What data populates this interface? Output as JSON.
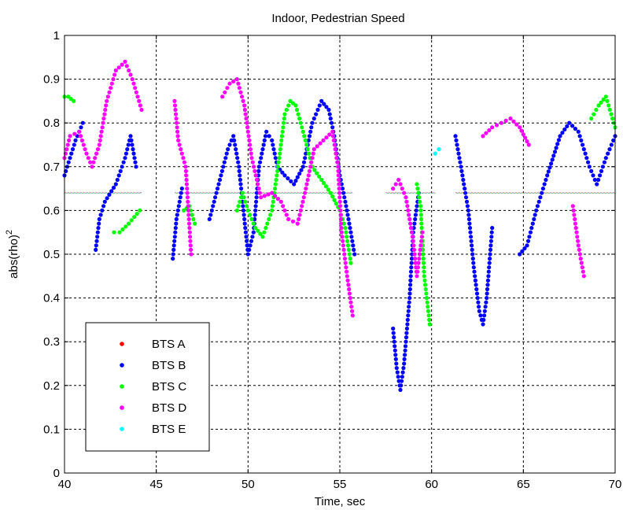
{
  "chart_data": {
    "type": "scatter",
    "title": "Indoor, Pedestrian Speed",
    "xlabel": "Time, sec",
    "ylabel_base": "abs(rho)",
    "ylabel_sup": "2",
    "xlim": [
      40,
      70
    ],
    "ylim": [
      0,
      1
    ],
    "xticks": [
      40,
      45,
      50,
      55,
      60,
      65,
      70
    ],
    "yticks": [
      0,
      0.1,
      0.2,
      0.3,
      0.4,
      0.5,
      0.6,
      0.7,
      0.8,
      0.9,
      1
    ],
    "ytick_labels": [
      "0",
      "0.1",
      "0.2",
      "0.3",
      "0.4",
      "0.5",
      "0.6",
      "0.7",
      "0.8",
      "0.9",
      "1"
    ],
    "grid": true,
    "legend_position": "bottom-left",
    "threshold_line": {
      "y": 0.64,
      "segments": [
        [
          40,
          44.2
        ],
        [
          46,
          55.7
        ],
        [
          57.5,
          60.2
        ],
        [
          61.3,
          70
        ]
      ]
    },
    "series": [
      {
        "name": "BTS A",
        "color": "#ff0000",
        "points": []
      },
      {
        "name": "BTS B",
        "color": "#0000ff",
        "polylines": [
          [
            [
              40,
              0.68
            ],
            [
              40.3,
              0.72
            ],
            [
              40.6,
              0.76
            ],
            [
              41.0,
              0.8
            ]
          ],
          [
            [
              41.7,
              0.51
            ],
            [
              41.9,
              0.58
            ],
            [
              42.2,
              0.62
            ],
            [
              42.8,
              0.66
            ],
            [
              43.3,
              0.72
            ],
            [
              43.6,
              0.77
            ],
            [
              43.9,
              0.7
            ]
          ],
          [
            [
              45.9,
              0.49
            ],
            [
              46.1,
              0.58
            ],
            [
              46.4,
              0.65
            ]
          ],
          [
            [
              47.9,
              0.58
            ],
            [
              48.4,
              0.66
            ],
            [
              48.9,
              0.74
            ],
            [
              49.2,
              0.77
            ],
            [
              49.5,
              0.7
            ],
            [
              49.8,
              0.58
            ],
            [
              50.0,
              0.5
            ],
            [
              50.3,
              0.55
            ],
            [
              50.6,
              0.7
            ],
            [
              51.0,
              0.78
            ],
            [
              51.3,
              0.76
            ],
            [
              51.6,
              0.7
            ],
            [
              52.0,
              0.68
            ],
            [
              52.5,
              0.66
            ],
            [
              53.0,
              0.7
            ],
            [
              53.5,
              0.8
            ],
            [
              54.0,
              0.85
            ],
            [
              54.4,
              0.83
            ],
            [
              54.7,
              0.77
            ],
            [
              55.0,
              0.68
            ],
            [
              55.3,
              0.62
            ],
            [
              55.6,
              0.55
            ],
            [
              55.8,
              0.5
            ]
          ],
          [
            [
              57.9,
              0.33
            ],
            [
              58.1,
              0.24
            ],
            [
              58.3,
              0.19
            ],
            [
              58.5,
              0.25
            ],
            [
              58.8,
              0.4
            ],
            [
              59.0,
              0.55
            ],
            [
              59.3,
              0.64
            ]
          ],
          [
            [
              61.3,
              0.77
            ],
            [
              61.6,
              0.7
            ],
            [
              62.0,
              0.6
            ],
            [
              62.3,
              0.47
            ],
            [
              62.6,
              0.37
            ],
            [
              62.8,
              0.34
            ],
            [
              63.0,
              0.4
            ],
            [
              63.3,
              0.56
            ]
          ],
          [
            [
              64.8,
              0.5
            ],
            [
              65.2,
              0.52
            ],
            [
              65.7,
              0.6
            ],
            [
              66.3,
              0.68
            ],
            [
              67.0,
              0.77
            ],
            [
              67.5,
              0.8
            ],
            [
              68.0,
              0.78
            ],
            [
              68.6,
              0.7
            ],
            [
              69.0,
              0.66
            ],
            [
              69.5,
              0.72
            ],
            [
              70,
              0.77
            ]
          ]
        ]
      },
      {
        "name": "BTS C",
        "color": "#00ff00",
        "polylines": [
          [
            [
              40,
              0.86
            ],
            [
              40.2,
              0.86
            ],
            [
              40.5,
              0.85
            ]
          ],
          [
            [
              42.7,
              0.55
            ],
            [
              43.0,
              0.55
            ],
            [
              43.5,
              0.57
            ],
            [
              44.1,
              0.6
            ]
          ],
          [
            [
              46.5,
              0.6
            ],
            [
              46.8,
              0.61
            ],
            [
              47.1,
              0.57
            ]
          ],
          [
            [
              49.4,
              0.6
            ],
            [
              49.7,
              0.64
            ],
            [
              50.0,
              0.6
            ],
            [
              50.4,
              0.56
            ],
            [
              50.8,
              0.54
            ],
            [
              51.3,
              0.6
            ],
            [
              51.7,
              0.72
            ],
            [
              52.0,
              0.82
            ],
            [
              52.3,
              0.85
            ],
            [
              52.6,
              0.84
            ],
            [
              53.0,
              0.78
            ],
            [
              53.5,
              0.7
            ],
            [
              54.0,
              0.67
            ],
            [
              54.5,
              0.64
            ],
            [
              55.0,
              0.6
            ],
            [
              55.3,
              0.56
            ],
            [
              55.6,
              0.48
            ]
          ],
          [
            [
              59.2,
              0.66
            ],
            [
              59.4,
              0.61
            ],
            [
              59.6,
              0.45
            ],
            [
              59.9,
              0.34
            ]
          ],
          [
            [
              68.7,
              0.81
            ],
            [
              69.1,
              0.84
            ],
            [
              69.5,
              0.86
            ],
            [
              70,
              0.79
            ]
          ]
        ]
      },
      {
        "name": "BTS D",
        "color": "#ff00ff",
        "polylines": [
          [
            [
              40,
              0.72
            ],
            [
              40.3,
              0.77
            ],
            [
              40.8,
              0.78
            ],
            [
              41.2,
              0.73
            ],
            [
              41.5,
              0.7
            ],
            [
              41.9,
              0.75
            ],
            [
              42.3,
              0.85
            ],
            [
              42.8,
              0.92
            ],
            [
              43.3,
              0.94
            ],
            [
              43.7,
              0.9
            ],
            [
              44.2,
              0.83
            ]
          ],
          [
            [
              46.0,
              0.85
            ],
            [
              46.2,
              0.76
            ],
            [
              46.6,
              0.7
            ],
            [
              46.9,
              0.5
            ]
          ],
          [
            [
              48.6,
              0.86
            ],
            [
              49.0,
              0.89
            ],
            [
              49.4,
              0.9
            ],
            [
              49.8,
              0.84
            ],
            [
              50.2,
              0.72
            ],
            [
              50.7,
              0.63
            ],
            [
              51.3,
              0.64
            ],
            [
              51.8,
              0.62
            ],
            [
              52.2,
              0.58
            ],
            [
              52.7,
              0.57
            ],
            [
              53.1,
              0.64
            ],
            [
              53.6,
              0.74
            ],
            [
              54.1,
              0.76
            ],
            [
              54.6,
              0.78
            ],
            [
              54.9,
              0.7
            ],
            [
              55.1,
              0.55
            ],
            [
              55.4,
              0.45
            ],
            [
              55.7,
              0.36
            ]
          ],
          [
            [
              57.9,
              0.65
            ],
            [
              58.2,
              0.67
            ],
            [
              58.6,
              0.63
            ],
            [
              59.0,
              0.53
            ],
            [
              59.2,
              0.45
            ],
            [
              59.5,
              0.55
            ]
          ],
          [
            [
              62.8,
              0.77
            ],
            [
              63.3,
              0.79
            ],
            [
              63.8,
              0.8
            ],
            [
              64.3,
              0.81
            ],
            [
              64.8,
              0.79
            ],
            [
              65.3,
              0.75
            ]
          ],
          [
            [
              67.7,
              0.61
            ],
            [
              68.0,
              0.52
            ],
            [
              68.3,
              0.45
            ]
          ]
        ]
      },
      {
        "name": "BTS E",
        "color": "#00ffff",
        "polylines": [
          [
            [
              60.2,
              0.73
            ],
            [
              60.4,
              0.74
            ]
          ]
        ]
      }
    ]
  }
}
